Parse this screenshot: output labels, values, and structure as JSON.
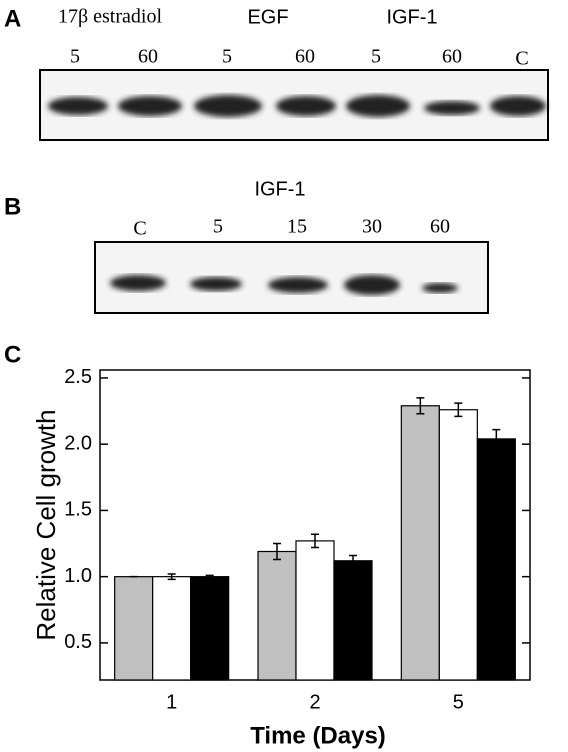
{
  "panels": {
    "a": {
      "label": "A",
      "groups": [
        {
          "name": "17β estradiol",
          "lanes": [
            "5",
            "60"
          ]
        },
        {
          "name": "EGF",
          "lanes": [
            "5",
            "60"
          ]
        },
        {
          "name": "IGF-1",
          "lanes": [
            "5",
            "60"
          ]
        }
      ],
      "control": "C"
    },
    "b": {
      "label": "B",
      "group": "IGF-1",
      "lanes": [
        "C",
        "5",
        "15",
        "30",
        "60"
      ]
    },
    "c": {
      "label": "C"
    }
  },
  "chart_data": {
    "type": "bar",
    "categories": [
      "1",
      "2",
      "5"
    ],
    "series": [
      {
        "color": "#c0c0c0",
        "values": [
          1.0,
          1.19,
          2.29
        ],
        "errors": [
          0,
          0.06,
          0.06
        ]
      },
      {
        "color": "#ffffff",
        "values": [
          1.0,
          1.27,
          2.26
        ],
        "errors": [
          0.02,
          0.05,
          0.05
        ]
      },
      {
        "color": "#000000",
        "values": [
          1.0,
          1.12,
          2.04
        ],
        "errors": [
          0.01,
          0.04,
          0.07
        ]
      }
    ],
    "ylim": [
      0.22,
      2.56
    ],
    "yticks": [
      0.5,
      {
        "value": 1,
        "label": "1.0"
      },
      1.5,
      {
        "value": 2,
        "label": "2.0"
      },
      2.5
    ],
    "y_label": "Relative Cell growth",
    "x_label": "Time (Days)"
  }
}
